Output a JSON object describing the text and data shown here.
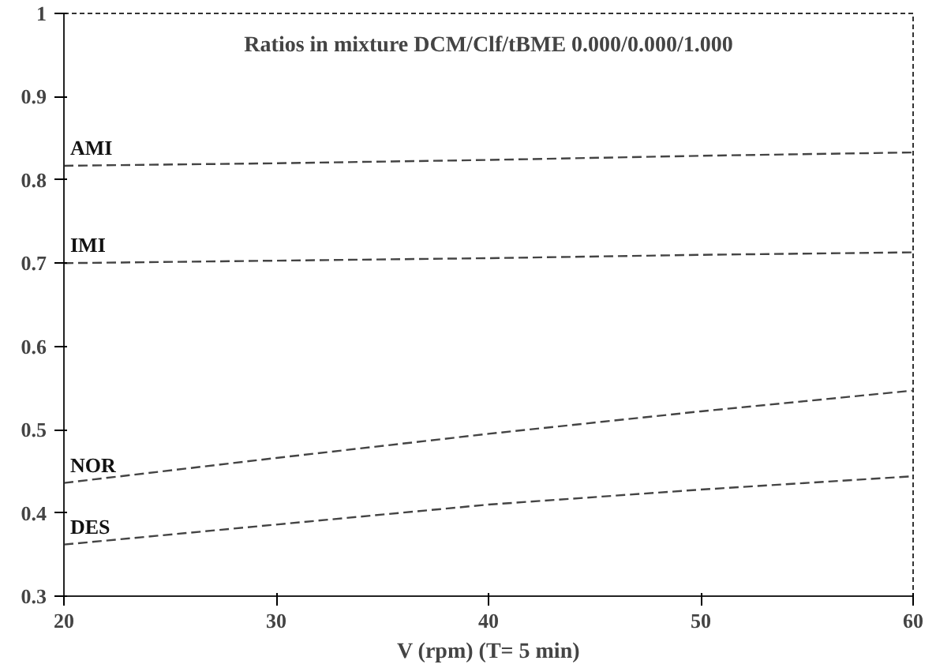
{
  "chart_data": {
    "type": "line",
    "title": "Ratios in mixture DCM/Clf/tBME 0.000/0.000/1.000",
    "xlabel": "V (rpm) (T= 5 min)",
    "x": [
      20,
      30,
      40,
      50,
      60
    ],
    "series": [
      {
        "name": "AMI",
        "color": "#444444",
        "values": [
          0.817,
          0.82,
          0.824,
          0.829,
          0.833
        ]
      },
      {
        "name": "IMI",
        "color": "#444444",
        "values": [
          0.7,
          0.703,
          0.706,
          0.71,
          0.713
        ]
      },
      {
        "name": "NOR",
        "color": "#444444",
        "values": [
          0.436,
          0.466,
          0.495,
          0.522,
          0.547
        ]
      },
      {
        "name": "DES",
        "color": "#444444",
        "values": [
          0.362,
          0.386,
          0.41,
          0.428,
          0.444
        ]
      }
    ],
    "xlim": [
      20,
      60
    ],
    "xticks": [
      20,
      30,
      40,
      50,
      60
    ],
    "ylim": [
      0.3,
      1
    ],
    "yticks": [
      0.3,
      0.4,
      0.5,
      0.6,
      0.7,
      0.8,
      0.9,
      {
        "value": 1,
        "label": "1"
      }
    ],
    "grid": false,
    "marker": "none",
    "line_style": "dashed"
  }
}
